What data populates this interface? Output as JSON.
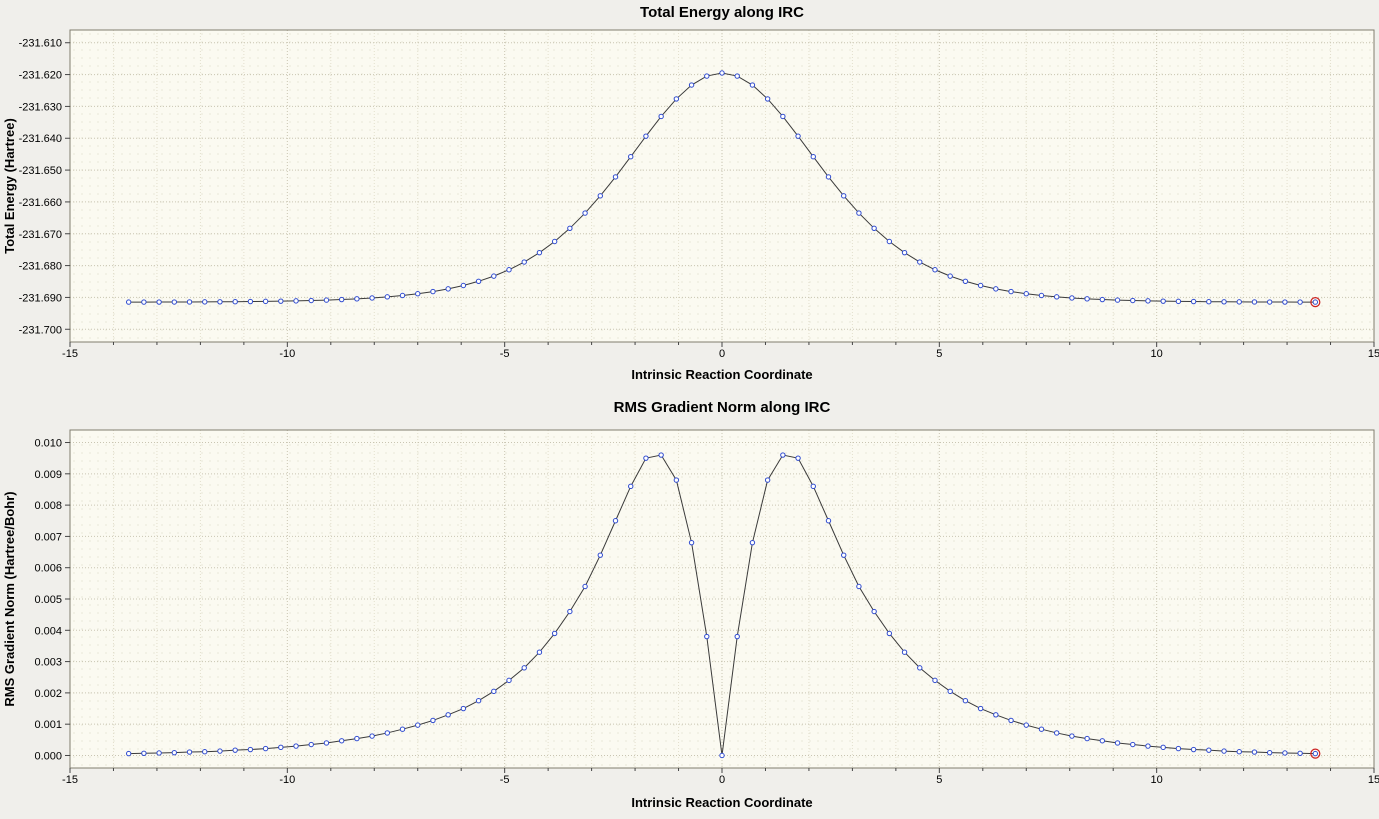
{
  "colors": {
    "page_bg": "#f0efeb",
    "plot_bg": "#fbfaf1",
    "grid": "#c9c5b2",
    "marker_blue": "#2f4bd0",
    "line_dark": "#3a3a3a",
    "endpoint_red": "#cc2020"
  },
  "chart_data": [
    {
      "type": "line",
      "title": "Total Energy along IRC",
      "xlabel": "Intrinsic Reaction Coordinate",
      "ylabel": "Total Energy (Hartree)",
      "legend": "none",
      "grid": "dotted",
      "xlim": [
        -15,
        15
      ],
      "ylim": [
        -231.704,
        -231.606
      ],
      "x_minor_step": 1,
      "xticks": [
        -15,
        -10,
        -5,
        0,
        5,
        10,
        15
      ],
      "yticks": [
        -231.61,
        -231.62,
        -231.63,
        -231.64,
        -231.65,
        -231.66,
        -231.67,
        -231.68,
        -231.69,
        -231.7
      ],
      "ytick_labels": [
        "-231.610",
        "-231.620",
        "-231.630",
        "-231.640",
        "-231.650",
        "-231.660",
        "-231.670",
        "-231.680",
        "-231.690",
        "-231.700"
      ],
      "marker_color": "#2f4bd0",
      "line_color": "#3a3a3a",
      "endpoint_color": "#cc2020",
      "x": [
        -13.65,
        -13.3,
        -12.95,
        -12.6,
        -12.25,
        -11.9,
        -11.55,
        -11.2,
        -10.85,
        -10.5,
        -10.15,
        -9.8,
        -9.45,
        -9.1,
        -8.75,
        -8.4,
        -8.05,
        -7.7,
        -7.35,
        -7.0,
        -6.65,
        -6.3,
        -5.95,
        -5.6,
        -5.25,
        -4.9,
        -4.55,
        -4.2,
        -3.85,
        -3.5,
        -3.15,
        -2.8,
        -2.45,
        -2.1,
        -1.75,
        -1.4,
        -1.05,
        -0.7,
        -0.35,
        0.0,
        0.35,
        0.7,
        1.05,
        1.4,
        1.75,
        2.1,
        2.45,
        2.8,
        3.15,
        3.5,
        3.85,
        4.2,
        4.55,
        4.9,
        5.25,
        5.6,
        5.95,
        6.3,
        6.65,
        7.0,
        7.35,
        7.7,
        8.05,
        8.4,
        8.75,
        9.1,
        9.45,
        9.8,
        10.15,
        10.5,
        10.85,
        11.2,
        11.55,
        11.9,
        12.25,
        12.6,
        12.95,
        13.3,
        13.65
      ],
      "y": [
        -231.69147,
        -231.69146,
        -231.69145,
        -231.69144,
        -231.69142,
        -231.6914,
        -231.69137,
        -231.69134,
        -231.69129,
        -231.69124,
        -231.69117,
        -231.69108,
        -231.69097,
        -231.69084,
        -231.69066,
        -231.69044,
        -231.69017,
        -231.68982,
        -231.68939,
        -231.68884,
        -231.68816,
        -231.68731,
        -231.68625,
        -231.68493,
        -231.68331,
        -231.68131,
        -231.67888,
        -231.67594,
        -231.67243,
        -231.66829,
        -231.66351,
        -231.65809,
        -231.65214,
        -231.6458,
        -231.63935,
        -231.63316,
        -231.62765,
        -231.62328,
        -231.62047,
        -231.6195,
        -231.62047,
        -231.62328,
        -231.62765,
        -231.63316,
        -231.63935,
        -231.6458,
        -231.65214,
        -231.65809,
        -231.66351,
        -231.66829,
        -231.67243,
        -231.67594,
        -231.67888,
        -231.68131,
        -231.68331,
        -231.68493,
        -231.68625,
        -231.68731,
        -231.68816,
        -231.68884,
        -231.68939,
        -231.68982,
        -231.69017,
        -231.69044,
        -231.69066,
        -231.69084,
        -231.69097,
        -231.69108,
        -231.69117,
        -231.69124,
        -231.69129,
        -231.69134,
        -231.69137,
        -231.6914,
        -231.69142,
        -231.69144,
        -231.69145,
        -231.69146,
        -231.69147
      ]
    },
    {
      "type": "line",
      "title": "RMS Gradient Norm along IRC",
      "xlabel": "Intrinsic Reaction Coordinate",
      "ylabel": "RMS Gradient Norm (Hartree/Bohr)",
      "legend": "none",
      "grid": "dotted",
      "xlim": [
        -15,
        15
      ],
      "ylim": [
        -0.0004,
        0.0104
      ],
      "x_minor_step": 1,
      "xticks": [
        -15,
        -10,
        -5,
        0,
        5,
        10,
        15
      ],
      "yticks": [
        0.0,
        0.001,
        0.002,
        0.003,
        0.004,
        0.005,
        0.006,
        0.007,
        0.008,
        0.009,
        0.01
      ],
      "ytick_labels": [
        "0.000",
        "0.001",
        "0.002",
        "0.003",
        "0.004",
        "0.005",
        "0.006",
        "0.007",
        "0.008",
        "0.009",
        "0.010"
      ],
      "marker_color": "#2f4bd0",
      "line_color": "#3a3a3a",
      "endpoint_color": "#cc2020",
      "x": [
        -13.65,
        -13.3,
        -12.95,
        -12.6,
        -12.25,
        -11.9,
        -11.55,
        -11.2,
        -10.85,
        -10.5,
        -10.15,
        -9.8,
        -9.45,
        -9.1,
        -8.75,
        -8.4,
        -8.05,
        -7.7,
        -7.35,
        -7.0,
        -6.65,
        -6.3,
        -5.95,
        -5.6,
        -5.25,
        -4.9,
        -4.55,
        -4.2,
        -3.85,
        -3.5,
        -3.15,
        -2.8,
        -2.45,
        -2.1,
        -1.75,
        -1.4,
        -1.05,
        -0.7,
        -0.35,
        0.0,
        0.35,
        0.7,
        1.05,
        1.4,
        1.75,
        2.1,
        2.45,
        2.8,
        3.15,
        3.5,
        3.85,
        4.2,
        4.55,
        4.9,
        5.25,
        5.6,
        5.95,
        6.3,
        6.65,
        7.0,
        7.35,
        7.7,
        8.05,
        8.4,
        8.75,
        9.1,
        9.45,
        9.8,
        10.15,
        10.5,
        10.85,
        11.2,
        11.55,
        11.9,
        12.25,
        12.6,
        12.95,
        13.3,
        13.65
      ],
      "y": [
        6e-05,
        7e-05,
        8e-05,
        9e-05,
        0.00011,
        0.00012,
        0.00014,
        0.00017,
        0.00019,
        0.00022,
        0.00026,
        0.0003,
        0.00035,
        0.0004,
        0.00047,
        0.00054,
        0.00062,
        0.00072,
        0.00084,
        0.00097,
        0.00112,
        0.0013,
        0.0015,
        0.00175,
        0.00205,
        0.0024,
        0.0028,
        0.0033,
        0.0039,
        0.0046,
        0.0054,
        0.0064,
        0.0075,
        0.0086,
        0.0095,
        0.0096,
        0.0088,
        0.0068,
        0.0038,
        0.0,
        0.0038,
        0.0068,
        0.0088,
        0.0096,
        0.0095,
        0.0086,
        0.0075,
        0.0064,
        0.0054,
        0.0046,
        0.0039,
        0.0033,
        0.0028,
        0.0024,
        0.00205,
        0.00175,
        0.0015,
        0.0013,
        0.00112,
        0.00097,
        0.00084,
        0.00072,
        0.00062,
        0.00054,
        0.00047,
        0.0004,
        0.00035,
        0.0003,
        0.00026,
        0.00022,
        0.00019,
        0.00017,
        0.00014,
        0.00012,
        0.00011,
        9e-05,
        8e-05,
        7e-05,
        6e-05
      ]
    }
  ]
}
